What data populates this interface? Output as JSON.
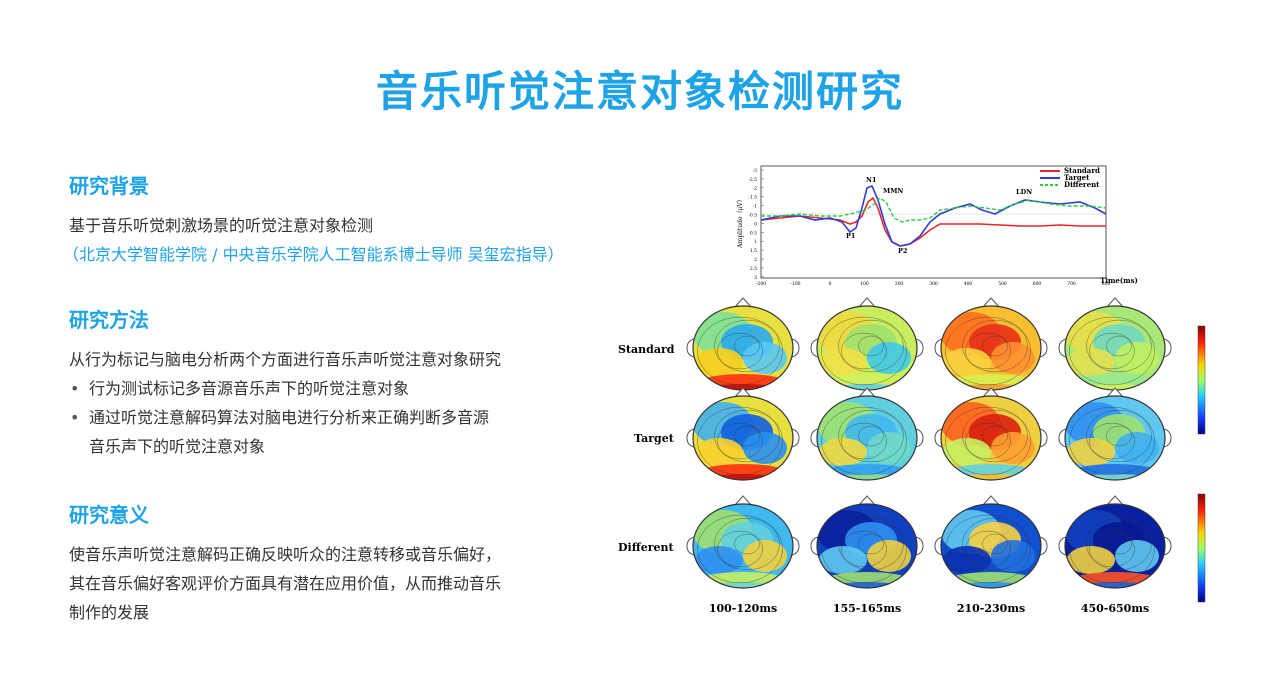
{
  "title": "音乐听觉注意对象检测研究",
  "background": {
    "heading": "研究背景",
    "line1": "基于音乐听觉刺激场景的听觉注意对象检测",
    "line2": "（北京大学智能学院 / 中央音乐学院人工智能系博士导师  吴玺宏指导）"
  },
  "method": {
    "heading": "研究方法",
    "intro": "从行为标记与脑电分析两个方面进行音乐声听觉注意对象研究",
    "bullets": [
      "行为测试标记多音源音乐声下的听觉注意对象",
      "通过听觉注意解码算法对脑电进行分析来正确判断多音源",
      "音乐声下的听觉注意对象"
    ]
  },
  "significance": {
    "heading": "研究意义",
    "lines": [
      "使音乐声听觉注意解码正确反映听众的注意转移或音乐偏好，",
      "其在音乐偏好客观评价方面具有潜在应用价值，从而推动音乐",
      "制作的发展"
    ]
  },
  "figure": {
    "erp": {
      "ylabel": "Amplitude（μV）",
      "xlabel": "Time(ms)",
      "yticks": [
        "-3",
        "-2.5",
        "-2",
        "-1.5",
        "-1",
        "-0.5",
        "0",
        "0.5",
        "1",
        "1.5",
        "2",
        "2.5",
        "3"
      ],
      "xticks": [
        "-200",
        "-100",
        "0",
        "100",
        "200",
        "300",
        "400",
        "500",
        "600",
        "700",
        "800"
      ],
      "peaks": [
        "N1",
        "MMN",
        "LDN",
        "P1",
        "P2"
      ],
      "legend": [
        {
          "name": "Standard",
          "color": "#e8272a"
        },
        {
          "name": "Target",
          "color": "#2d3fd6"
        },
        {
          "name": "Different",
          "color": "#2ecc40"
        }
      ]
    },
    "rows": [
      "Standard",
      "Target",
      "Different"
    ],
    "windows": [
      "100-120ms",
      "155-165ms",
      "210-230ms",
      "450-650ms"
    ]
  }
}
